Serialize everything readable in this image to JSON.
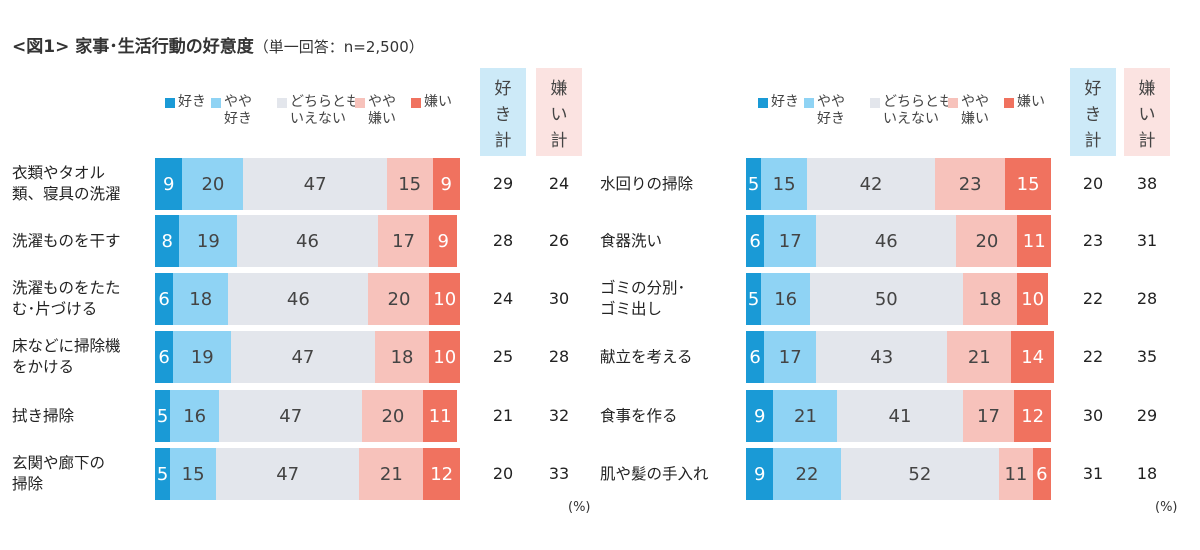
{
  "title": "<図1> 家事･生活行動の好意度",
  "subtitle": "（単一回答：n=2,500）",
  "unit": "(%)",
  "colors": {
    "like": "#1a9ad6",
    "somewhat_like": "#8fd3f4",
    "neutral": "#e3e6ec",
    "somewhat_dislike": "#f7c2bb",
    "dislike": "#f0725f",
    "like_total_bg": "#cdeaf8",
    "dislike_total_bg": "#fbe3e1"
  },
  "chart_data": [
    {
      "type": "bar",
      "stacked": true,
      "orientation": "horizontal",
      "legend": [
        "好き",
        "やや好き",
        "どちらともいえない",
        "やや嫌い",
        "嫌い"
      ],
      "total_headers": [
        "好き計",
        "嫌い計"
      ],
      "categories": [
        "衣類やタオル類、寝具の洗濯",
        "洗濯ものを干す",
        "洗濯ものをたたむ･片づける",
        "床などに掃除機をかける",
        "拭き掃除",
        "玄関や廊下の掃除"
      ],
      "series": [
        {
          "name": "好き",
          "values": [
            9,
            8,
            6,
            6,
            5,
            5
          ]
        },
        {
          "name": "やや好き",
          "values": [
            20,
            19,
            18,
            19,
            16,
            15
          ]
        },
        {
          "name": "どちらともいえない",
          "values": [
            47,
            46,
            46,
            47,
            47,
            47
          ]
        },
        {
          "name": "やや嫌い",
          "values": [
            15,
            17,
            20,
            18,
            20,
            21
          ]
        },
        {
          "name": "嫌い",
          "values": [
            9,
            9,
            10,
            10,
            11,
            12
          ]
        }
      ],
      "like_total": [
        29,
        28,
        24,
        25,
        21,
        20
      ],
      "dislike_total": [
        24,
        26,
        30,
        28,
        32,
        33
      ]
    },
    {
      "type": "bar",
      "stacked": true,
      "orientation": "horizontal",
      "legend": [
        "好き",
        "やや好き",
        "どちらともいえない",
        "やや嫌い",
        "嫌い"
      ],
      "total_headers": [
        "好き計",
        "嫌い計"
      ],
      "categories": [
        "水回りの掃除",
        "食器洗い",
        "ゴミの分別･ゴミ出し",
        "献立を考える",
        "食事を作る",
        "肌や髪の手入れ"
      ],
      "series": [
        {
          "name": "好き",
          "values": [
            5,
            6,
            5,
            6,
            9,
            9
          ]
        },
        {
          "name": "やや好き",
          "values": [
            15,
            17,
            16,
            17,
            21,
            22
          ]
        },
        {
          "name": "どちらともいえない",
          "values": [
            42,
            46,
            50,
            43,
            41,
            52
          ]
        },
        {
          "name": "やや嫌い",
          "values": [
            23,
            20,
            18,
            21,
            17,
            11
          ]
        },
        {
          "name": "嫌い",
          "values": [
            15,
            11,
            10,
            14,
            12,
            6
          ]
        }
      ],
      "like_total": [
        20,
        23,
        22,
        22,
        30,
        31
      ],
      "dislike_total": [
        38,
        31,
        28,
        35,
        29,
        18
      ]
    }
  ],
  "labels": {
    "legend_lines": [
      [
        "好き"
      ],
      [
        "やや",
        "好き"
      ],
      [
        "どちらとも",
        "いえない"
      ],
      [
        "やや",
        "嫌い"
      ],
      [
        "嫌い"
      ]
    ],
    "total_header_lines": [
      [
        "好",
        "き",
        "計"
      ],
      [
        "嫌",
        "い",
        "計"
      ]
    ],
    "left_categories": [
      [
        "衣類やタオル",
        "類、寝具の洗濯"
      ],
      [
        "洗濯ものを干す"
      ],
      [
        "洗濯ものをたた",
        "む･片づける"
      ],
      [
        "床などに掃除機",
        "をかける"
      ],
      [
        "拭き掃除"
      ],
      [
        "玄関や廊下の",
        "掃除"
      ]
    ],
    "right_categories": [
      [
        "水回りの掃除"
      ],
      [
        "食器洗い"
      ],
      [
        "ゴミの分別･",
        "ゴミ出し"
      ],
      [
        "献立を考える"
      ],
      [
        "食事を作る"
      ],
      [
        "肌や髪の手入れ"
      ]
    ]
  }
}
